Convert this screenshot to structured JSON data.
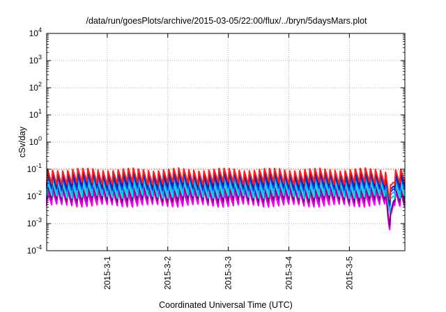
{
  "chart_data": {
    "type": "line",
    "title": "/data/run/goesPlots/archive/2015-03-05/22:00/flux/../bryn/5daysMars.plot",
    "xlabel": "Coordinated Universal Time (UTC)",
    "ylabel": "cSv/day",
    "y_scale": "log",
    "ylim": [
      0.0001,
      10000
    ],
    "y_ticks": [
      {
        "value": 0.0001,
        "base": "10",
        "exp": "-4"
      },
      {
        "value": 0.001,
        "base": "10",
        "exp": "-3"
      },
      {
        "value": 0.01,
        "base": "10",
        "exp": "-2"
      },
      {
        "value": 0.1,
        "base": "10",
        "exp": "-1"
      },
      {
        "value": 1,
        "base": "10",
        "exp": "0"
      },
      {
        "value": 10,
        "base": "10",
        "exp": "1"
      },
      {
        "value": 100,
        "base": "10",
        "exp": "2"
      },
      {
        "value": 1000,
        "base": "10",
        "exp": "3"
      },
      {
        "value": 10000,
        "base": "10",
        "exp": "4"
      }
    ],
    "xlim": [
      "2015-02-28T00:00",
      "2015-03-05T22:00"
    ],
    "x_ticks": [
      {
        "value": "2015-03-01T00:00",
        "label": "2015-3-1"
      },
      {
        "value": "2015-03-02T00:00",
        "label": "2015-3-2"
      },
      {
        "value": "2015-03-03T00:00",
        "label": "2015-3-3"
      },
      {
        "value": "2015-03-04T00:00",
        "label": "2015-3-4"
      },
      {
        "value": "2015-03-05T00:00",
        "label": "2015-3-5"
      }
    ],
    "grid": true,
    "reference_line": {
      "value": 0.1,
      "color": "#ff0000",
      "style": "dotted"
    },
    "orbit_period_hours": 2,
    "dip": {
      "start": "2015-03-05T14:00",
      "end": "2015-03-05T18:00",
      "factor": 0.12
    },
    "series": [
      {
        "color": "#ff00ff",
        "peak": 0.015,
        "trough": 0.0045
      },
      {
        "color": "#dd00dd",
        "peak": 0.018,
        "trough": 0.0055
      },
      {
        "color": "#800080",
        "peak": 0.022,
        "trough": 0.0068
      },
      {
        "color": "#00e0e0",
        "peak": 0.032,
        "trough": 0.0095
      },
      {
        "color": "#20b0ff",
        "peak": 0.045,
        "trough": 0.0135
      },
      {
        "color": "#0040ff",
        "peak": 0.06,
        "trough": 0.018
      },
      {
        "color": "#2020a0",
        "peak": 0.075,
        "trough": 0.022
      },
      {
        "color": "#ff2020",
        "peak": 0.1,
        "trough": 0.03
      }
    ]
  }
}
